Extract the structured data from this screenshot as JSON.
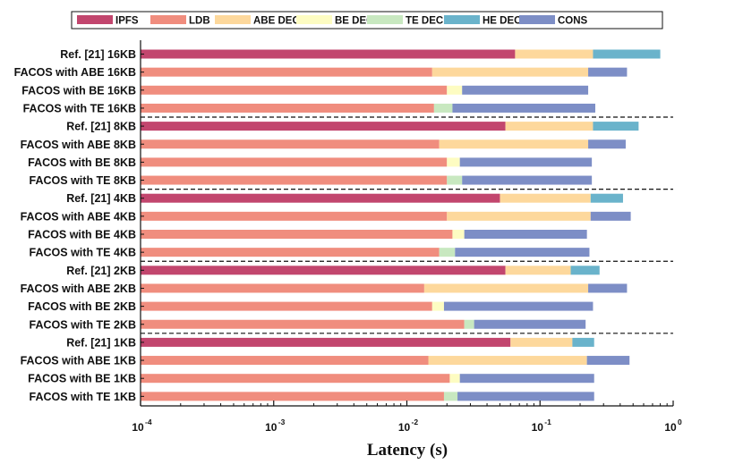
{
  "chart_data": {
    "type": "bar",
    "orientation": "horizontal",
    "stacked": true,
    "x_scale": "log",
    "xlim": [
      0.0001,
      1
    ],
    "xlabel": "Latency (s)",
    "ylabel": "",
    "title": "",
    "legend_position": "top",
    "x_ticks": [
      {
        "base": "10",
        "exp": "-4"
      },
      {
        "base": "10",
        "exp": "-3"
      },
      {
        "base": "10",
        "exp": "-2"
      },
      {
        "base": "10",
        "exp": "-1"
      },
      {
        "base": "10",
        "exp": "0"
      }
    ],
    "x_tick_values": [
      0.0001,
      0.001,
      0.01,
      0.1,
      1
    ],
    "series": [
      {
        "name": "IPFS",
        "color": "#c2466e"
      },
      {
        "name": "LDB",
        "color": "#f08d7e"
      },
      {
        "name": "ABE DEC",
        "color": "#fdd89c"
      },
      {
        "name": "BE DEC",
        "color": "#fdfcc2"
      },
      {
        "name": "TE DEC",
        "color": "#c8e8c0"
      },
      {
        "name": "HE DEC",
        "color": "#6ab3cb"
      },
      {
        "name": "CONS",
        "color": "#7d8ec6"
      }
    ],
    "categories": [
      {
        "label": "Ref. [21] 16KB",
        "segments": [
          {
            "s": "IPFS",
            "end": 0.065
          },
          {
            "s": "ABE DEC",
            "end": 0.25
          },
          {
            "s": "HE DEC",
            "end": 0.8
          }
        ]
      },
      {
        "label": "FACOS with ABE 16KB",
        "segments": [
          {
            "s": "LDB",
            "end": 0.0155
          },
          {
            "s": "ABE DEC",
            "end": 0.23
          },
          {
            "s": "CONS",
            "end": 0.45
          }
        ]
      },
      {
        "label": "FACOS with BE 16KB",
        "segments": [
          {
            "s": "LDB",
            "end": 0.02
          },
          {
            "s": "BE DEC",
            "end": 0.026
          },
          {
            "s": "CONS",
            "end": 0.23
          }
        ]
      },
      {
        "label": "FACOS with TE 16KB",
        "segments": [
          {
            "s": "LDB",
            "end": 0.016
          },
          {
            "s": "TE DEC",
            "end": 0.022
          },
          {
            "s": "CONS",
            "end": 0.26
          }
        ]
      },
      {
        "label": "Ref. [21] 8KB",
        "segments": [
          {
            "s": "IPFS",
            "end": 0.055
          },
          {
            "s": "ABE DEC",
            "end": 0.25
          },
          {
            "s": "HE DEC",
            "end": 0.55
          }
        ]
      },
      {
        "label": "FACOS with ABE 8KB",
        "segments": [
          {
            "s": "LDB",
            "end": 0.0175
          },
          {
            "s": "ABE DEC",
            "end": 0.23
          },
          {
            "s": "CONS",
            "end": 0.44
          }
        ]
      },
      {
        "label": "FACOS with BE 8KB",
        "segments": [
          {
            "s": "LDB",
            "end": 0.02
          },
          {
            "s": "BE DEC",
            "end": 0.025
          },
          {
            "s": "CONS",
            "end": 0.245
          }
        ]
      },
      {
        "label": "FACOS with TE 8KB",
        "segments": [
          {
            "s": "LDB",
            "end": 0.02
          },
          {
            "s": "TE DEC",
            "end": 0.026
          },
          {
            "s": "CONS",
            "end": 0.245
          }
        ]
      },
      {
        "label": "Ref. [21] 4KB",
        "segments": [
          {
            "s": "IPFS",
            "end": 0.05
          },
          {
            "s": "ABE DEC",
            "end": 0.24
          },
          {
            "s": "HE DEC",
            "end": 0.42
          }
        ]
      },
      {
        "label": "FACOS with ABE 4KB",
        "segments": [
          {
            "s": "LDB",
            "end": 0.02
          },
          {
            "s": "ABE DEC",
            "end": 0.24
          },
          {
            "s": "CONS",
            "end": 0.48
          }
        ]
      },
      {
        "label": "FACOS with BE 4KB",
        "segments": [
          {
            "s": "LDB",
            "end": 0.022
          },
          {
            "s": "BE DEC",
            "end": 0.027
          },
          {
            "s": "CONS",
            "end": 0.225
          }
        ]
      },
      {
        "label": "FACOS with TE 4KB",
        "segments": [
          {
            "s": "LDB",
            "end": 0.0175
          },
          {
            "s": "TE DEC",
            "end": 0.023
          },
          {
            "s": "CONS",
            "end": 0.235
          }
        ]
      },
      {
        "label": "Ref. [21] 2KB",
        "segments": [
          {
            "s": "IPFS",
            "end": 0.055
          },
          {
            "s": "ABE DEC",
            "end": 0.17
          },
          {
            "s": "HE DEC",
            "end": 0.28
          }
        ]
      },
      {
        "label": "FACOS with ABE 2KB",
        "segments": [
          {
            "s": "LDB",
            "end": 0.0135
          },
          {
            "s": "ABE DEC",
            "end": 0.23
          },
          {
            "s": "CONS",
            "end": 0.45
          }
        ]
      },
      {
        "label": "FACOS with BE 2KB",
        "segments": [
          {
            "s": "LDB",
            "end": 0.0155
          },
          {
            "s": "BE DEC",
            "end": 0.019
          },
          {
            "s": "CONS",
            "end": 0.25
          }
        ]
      },
      {
        "label": "FACOS with TE 2KB",
        "segments": [
          {
            "s": "LDB",
            "end": 0.027
          },
          {
            "s": "TE DEC",
            "end": 0.032
          },
          {
            "s": "CONS",
            "end": 0.22
          }
        ]
      },
      {
        "label": "Ref. [21] 1KB",
        "segments": [
          {
            "s": "IPFS",
            "end": 0.06
          },
          {
            "s": "ABE DEC",
            "end": 0.175
          },
          {
            "s": "HE DEC",
            "end": 0.255
          }
        ]
      },
      {
        "label": "FACOS with ABE 1KB",
        "segments": [
          {
            "s": "LDB",
            "end": 0.0145
          },
          {
            "s": "ABE DEC",
            "end": 0.225
          },
          {
            "s": "CONS",
            "end": 0.47
          }
        ]
      },
      {
        "label": "FACOS with BE 1KB",
        "segments": [
          {
            "s": "LDB",
            "end": 0.021
          },
          {
            "s": "BE DEC",
            "end": 0.025
          },
          {
            "s": "CONS",
            "end": 0.255
          }
        ]
      },
      {
        "label": "FACOS with TE 1KB",
        "segments": [
          {
            "s": "LDB",
            "end": 0.019
          },
          {
            "s": "TE DEC",
            "end": 0.024
          },
          {
            "s": "CONS",
            "end": 0.255
          }
        ]
      }
    ],
    "group_separators_after": [
      3,
      7,
      11,
      15
    ]
  }
}
